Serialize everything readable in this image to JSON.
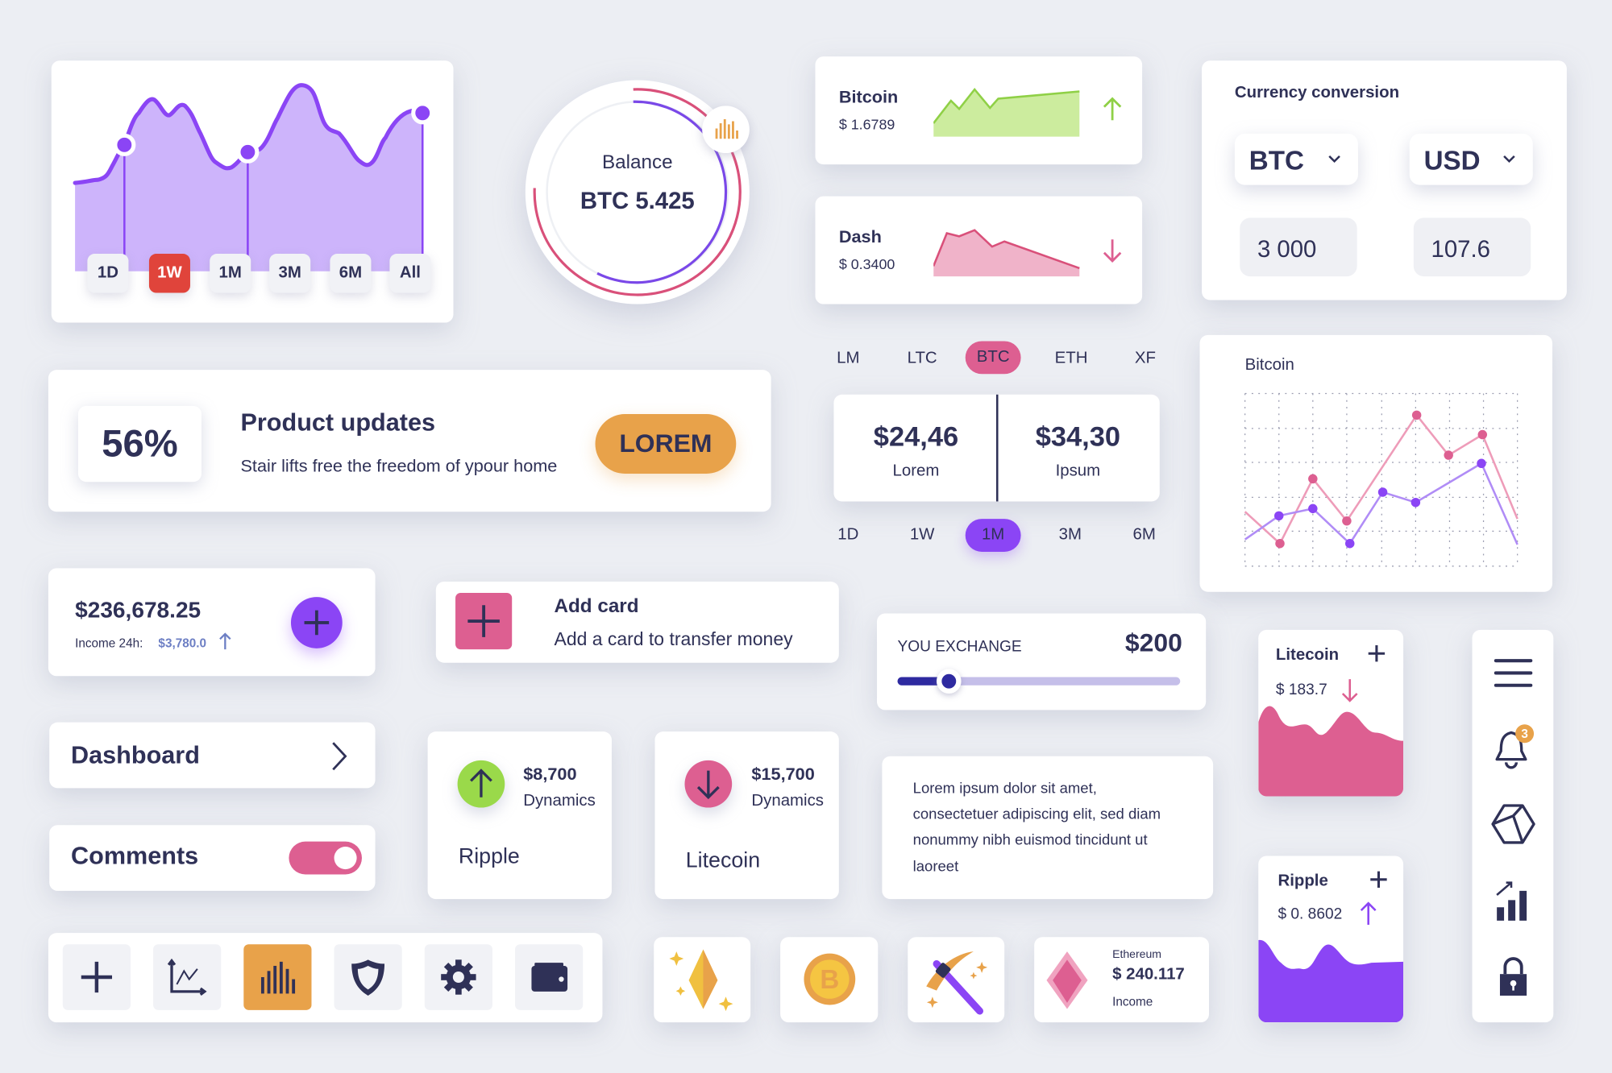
{
  "colors": {
    "navy": "#2f3157",
    "purple": "#8b45f5",
    "light_purple": "#cdb4fb",
    "pink": "#dd5f91",
    "orange": "#e8a24a",
    "green": "#9ad94a",
    "red": "#e0443b",
    "background": "#eceef3"
  },
  "range_chart": {
    "tabs": [
      "1D",
      "1W",
      "1M",
      "3M",
      "6M",
      "All"
    ],
    "active_tab": "1W"
  },
  "balance": {
    "label": "Balance",
    "value": "BTC 5.425",
    "badge_icon": "bar-chart-icon"
  },
  "tickers": [
    {
      "name": "Bitcoin",
      "price": "$ 1.6789",
      "trend": "up",
      "color": "#9ad94a"
    },
    {
      "name": "Dash",
      "price": "$ 0.3400",
      "trend": "down",
      "color": "#dd5f91"
    }
  ],
  "conversion": {
    "title": "Currency conversion",
    "from_currency": "BTC",
    "to_currency": "USD",
    "from_amount": "3 000",
    "to_amount": "107.6"
  },
  "product": {
    "percent": "56%",
    "title": "Product updates",
    "subtitle": "Stair lifts free the freedom of ypour home",
    "button": "LOREM"
  },
  "coin_tabs": {
    "items": [
      "LM",
      "LTC",
      "BTC",
      "ETH",
      "XF"
    ],
    "active": "BTC"
  },
  "prices": [
    {
      "value": "$24,46",
      "label": "Lorem"
    },
    {
      "value": "$34,30",
      "label": "Ipsum"
    }
  ],
  "period_tabs": {
    "items": [
      "1D",
      "1W",
      "1M",
      "3M",
      "6M"
    ],
    "active": "1M"
  },
  "bitcoin_chart": {
    "title": "Bitcoin"
  },
  "total": {
    "amount": "$236,678.25",
    "income_label": "Income 24h:",
    "income_value": "$3,780.0"
  },
  "add_card": {
    "title": "Add card",
    "subtitle": "Add a card to transfer money"
  },
  "exchange": {
    "label": "YOU EXCHANGE",
    "amount": "$200",
    "slider_fraction": 0.18
  },
  "mini_litecoin": {
    "name": "Litecoin",
    "price": "$ 183.7",
    "trend": "down"
  },
  "mini_ripple": {
    "name": "Ripple",
    "price": "$ 0. 8602",
    "trend": "up"
  },
  "sidenav": {
    "icons": [
      "menu-icon",
      "bell-icon",
      "cube-icon",
      "growth-chart-icon",
      "lock-icon"
    ],
    "notification_count": "3"
  },
  "menu": {
    "dashboard": "Dashboard",
    "comments": "Comments",
    "comments_enabled": true
  },
  "dynamics": [
    {
      "amount": "$8,700",
      "label": "Dynamics",
      "coin": "Ripple",
      "trend": "up"
    },
    {
      "amount": "$15,700",
      "label": "Dynamics",
      "coin": "Litecoin",
      "trend": "down"
    }
  ],
  "lorem": {
    "lines": [
      "Lorem ipsum dolor sit amet,",
      "consectetuer adipiscing elit, sed diam",
      "nonummy nibh euismod tincidunt ut",
      "laoreet"
    ]
  },
  "toolbar": {
    "icons": [
      "plus-icon",
      "line-chart-icon",
      "bar-chart-icon",
      "shield-icon",
      "gear-icon",
      "wallet-icon"
    ],
    "active": "bar-chart-icon"
  },
  "ethereum": {
    "name": "Ethereum",
    "amount": "$ 240.117",
    "label": "Income"
  }
}
